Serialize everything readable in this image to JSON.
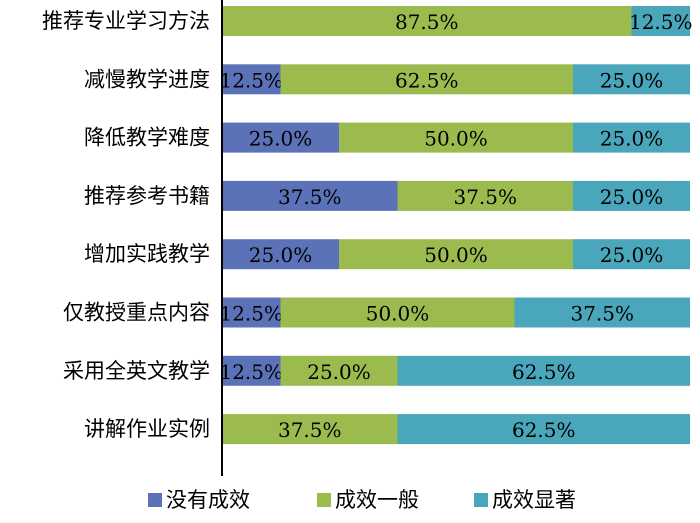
{
  "chart_data": {
    "type": "bar",
    "orientation": "horizontal",
    "stacked": true,
    "percent": true,
    "categories": [
      "推荐专业学习方法",
      "减慢教学进度",
      "降低教学难度",
      "推荐参考书籍",
      "增加实践教学",
      "仅教授重点内容",
      "采用全英文教学",
      "讲解作业实例"
    ],
    "series": [
      {
        "name": "没有成效",
        "color": "#5b72b8",
        "values": [
          0,
          12.5,
          25.0,
          37.5,
          25.0,
          12.5,
          12.5,
          0
        ],
        "labels": [
          "",
          "12.5%",
          "25.0%",
          "37.5%",
          "25.0%",
          "12.5%",
          "12.5%",
          ""
        ]
      },
      {
        "name": "成效一般",
        "color": "#9bbb4e",
        "values": [
          87.5,
          62.5,
          50.0,
          37.5,
          50.0,
          50.0,
          25.0,
          37.5
        ],
        "labels": [
          "87.5%",
          "62.5%",
          "50.0%",
          "37.5%",
          "50.0%",
          "50.0%",
          "25.0%",
          "37.5%"
        ]
      },
      {
        "name": "成效显著",
        "color": "#4aa6bb",
        "values": [
          12.5,
          25.0,
          25.0,
          25.0,
          25.0,
          37.5,
          62.5,
          62.5
        ],
        "labels": [
          "12.5%",
          "25.0%",
          "25.0%",
          "25.0%",
          "25.0%",
          "37.5%",
          "62.5%",
          "62.5%"
        ]
      }
    ],
    "xlim": [
      0,
      100
    ],
    "grid": false,
    "legend_position": "bottom"
  }
}
